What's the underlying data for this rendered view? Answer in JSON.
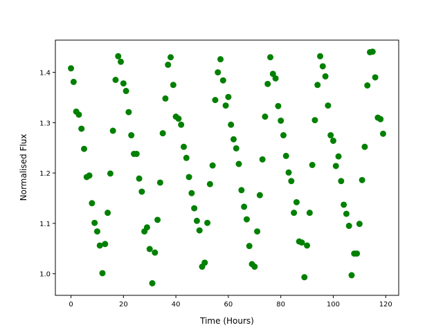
{
  "chart_data": {
    "type": "scatter",
    "xlabel": "Time (Hours)",
    "ylabel": "Normalised Flux",
    "color": "#008000",
    "x": [
      0,
      1,
      2,
      3,
      4,
      5,
      6,
      7,
      8,
      9,
      10,
      11,
      12,
      13,
      14,
      15,
      16,
      17,
      18,
      19,
      20,
      21,
      22,
      23,
      24,
      25,
      26,
      27,
      28,
      29,
      30,
      31,
      32,
      33,
      34,
      35,
      36,
      37,
      38,
      39,
      40,
      41,
      42,
      43,
      44,
      45,
      46,
      47,
      48,
      49,
      50,
      51,
      52,
      53,
      54,
      55,
      56,
      57,
      58,
      59,
      60,
      61,
      62,
      63,
      64,
      65,
      66,
      67,
      68,
      69,
      70,
      71,
      72,
      73,
      74,
      75,
      76,
      77,
      78,
      79,
      80,
      81,
      82,
      83,
      84,
      85,
      86,
      87,
      88,
      89,
      90,
      91,
      92,
      93,
      94,
      95,
      96,
      97,
      98,
      99,
      100,
      101,
      102,
      103,
      104,
      105,
      106,
      107,
      108,
      109,
      110,
      111,
      112,
      113,
      114,
      115,
      116,
      117,
      118,
      119
    ],
    "values": [
      1.408,
      1.381,
      1.322,
      1.316,
      1.288,
      1.248,
      1.192,
      1.195,
      1.14,
      1.101,
      1.084,
      1.056,
      1.001,
      1.059,
      1.121,
      1.199,
      1.284,
      1.385,
      1.432,
      1.421,
      1.378,
      1.363,
      1.321,
      1.275,
      1.238,
      1.238,
      1.189,
      1.163,
      1.084,
      1.092,
      1.049,
      0.981,
      1.042,
      1.107,
      1.181,
      1.279,
      1.348,
      1.415,
      1.43,
      1.375,
      1.312,
      1.308,
      1.296,
      1.252,
      1.23,
      1.192,
      1.16,
      1.13,
      1.105,
      1.086,
      1.014,
      1.022,
      1.101,
      1.178,
      1.215,
      1.345,
      1.4,
      1.426,
      1.384,
      1.334,
      1.351,
      1.296,
      1.267,
      1.249,
      1.218,
      1.166,
      1.133,
      1.108,
      1.055,
      1.019,
      1.014,
      1.084,
      1.156,
      1.227,
      1.312,
      1.377,
      1.43,
      1.397,
      1.388,
      1.333,
      1.304,
      1.275,
      1.234,
      1.201,
      1.184,
      1.121,
      1.142,
      1.064,
      1.062,
      0.993,
      1.056,
      1.121,
      1.216,
      1.305,
      1.375,
      1.432,
      1.412,
      1.392,
      1.334,
      1.275,
      1.264,
      1.214,
      1.233,
      1.184,
      1.137,
      1.119,
      1.095,
      0.997,
      1.04,
      1.04,
      1.099,
      1.186,
      1.252,
      1.374,
      1.44,
      1.441,
      1.39,
      1.31,
      1.307,
      1.278
    ],
    "xlim": [
      -5.95,
      124.95
    ],
    "ylim": [
      0.957,
      1.464
    ],
    "xticks": [
      0,
      20,
      40,
      60,
      80,
      100,
      120
    ],
    "yticks": [
      {
        "value": 1,
        "label": "1.0"
      },
      1.1,
      1.2,
      1.3,
      1.4
    ]
  }
}
